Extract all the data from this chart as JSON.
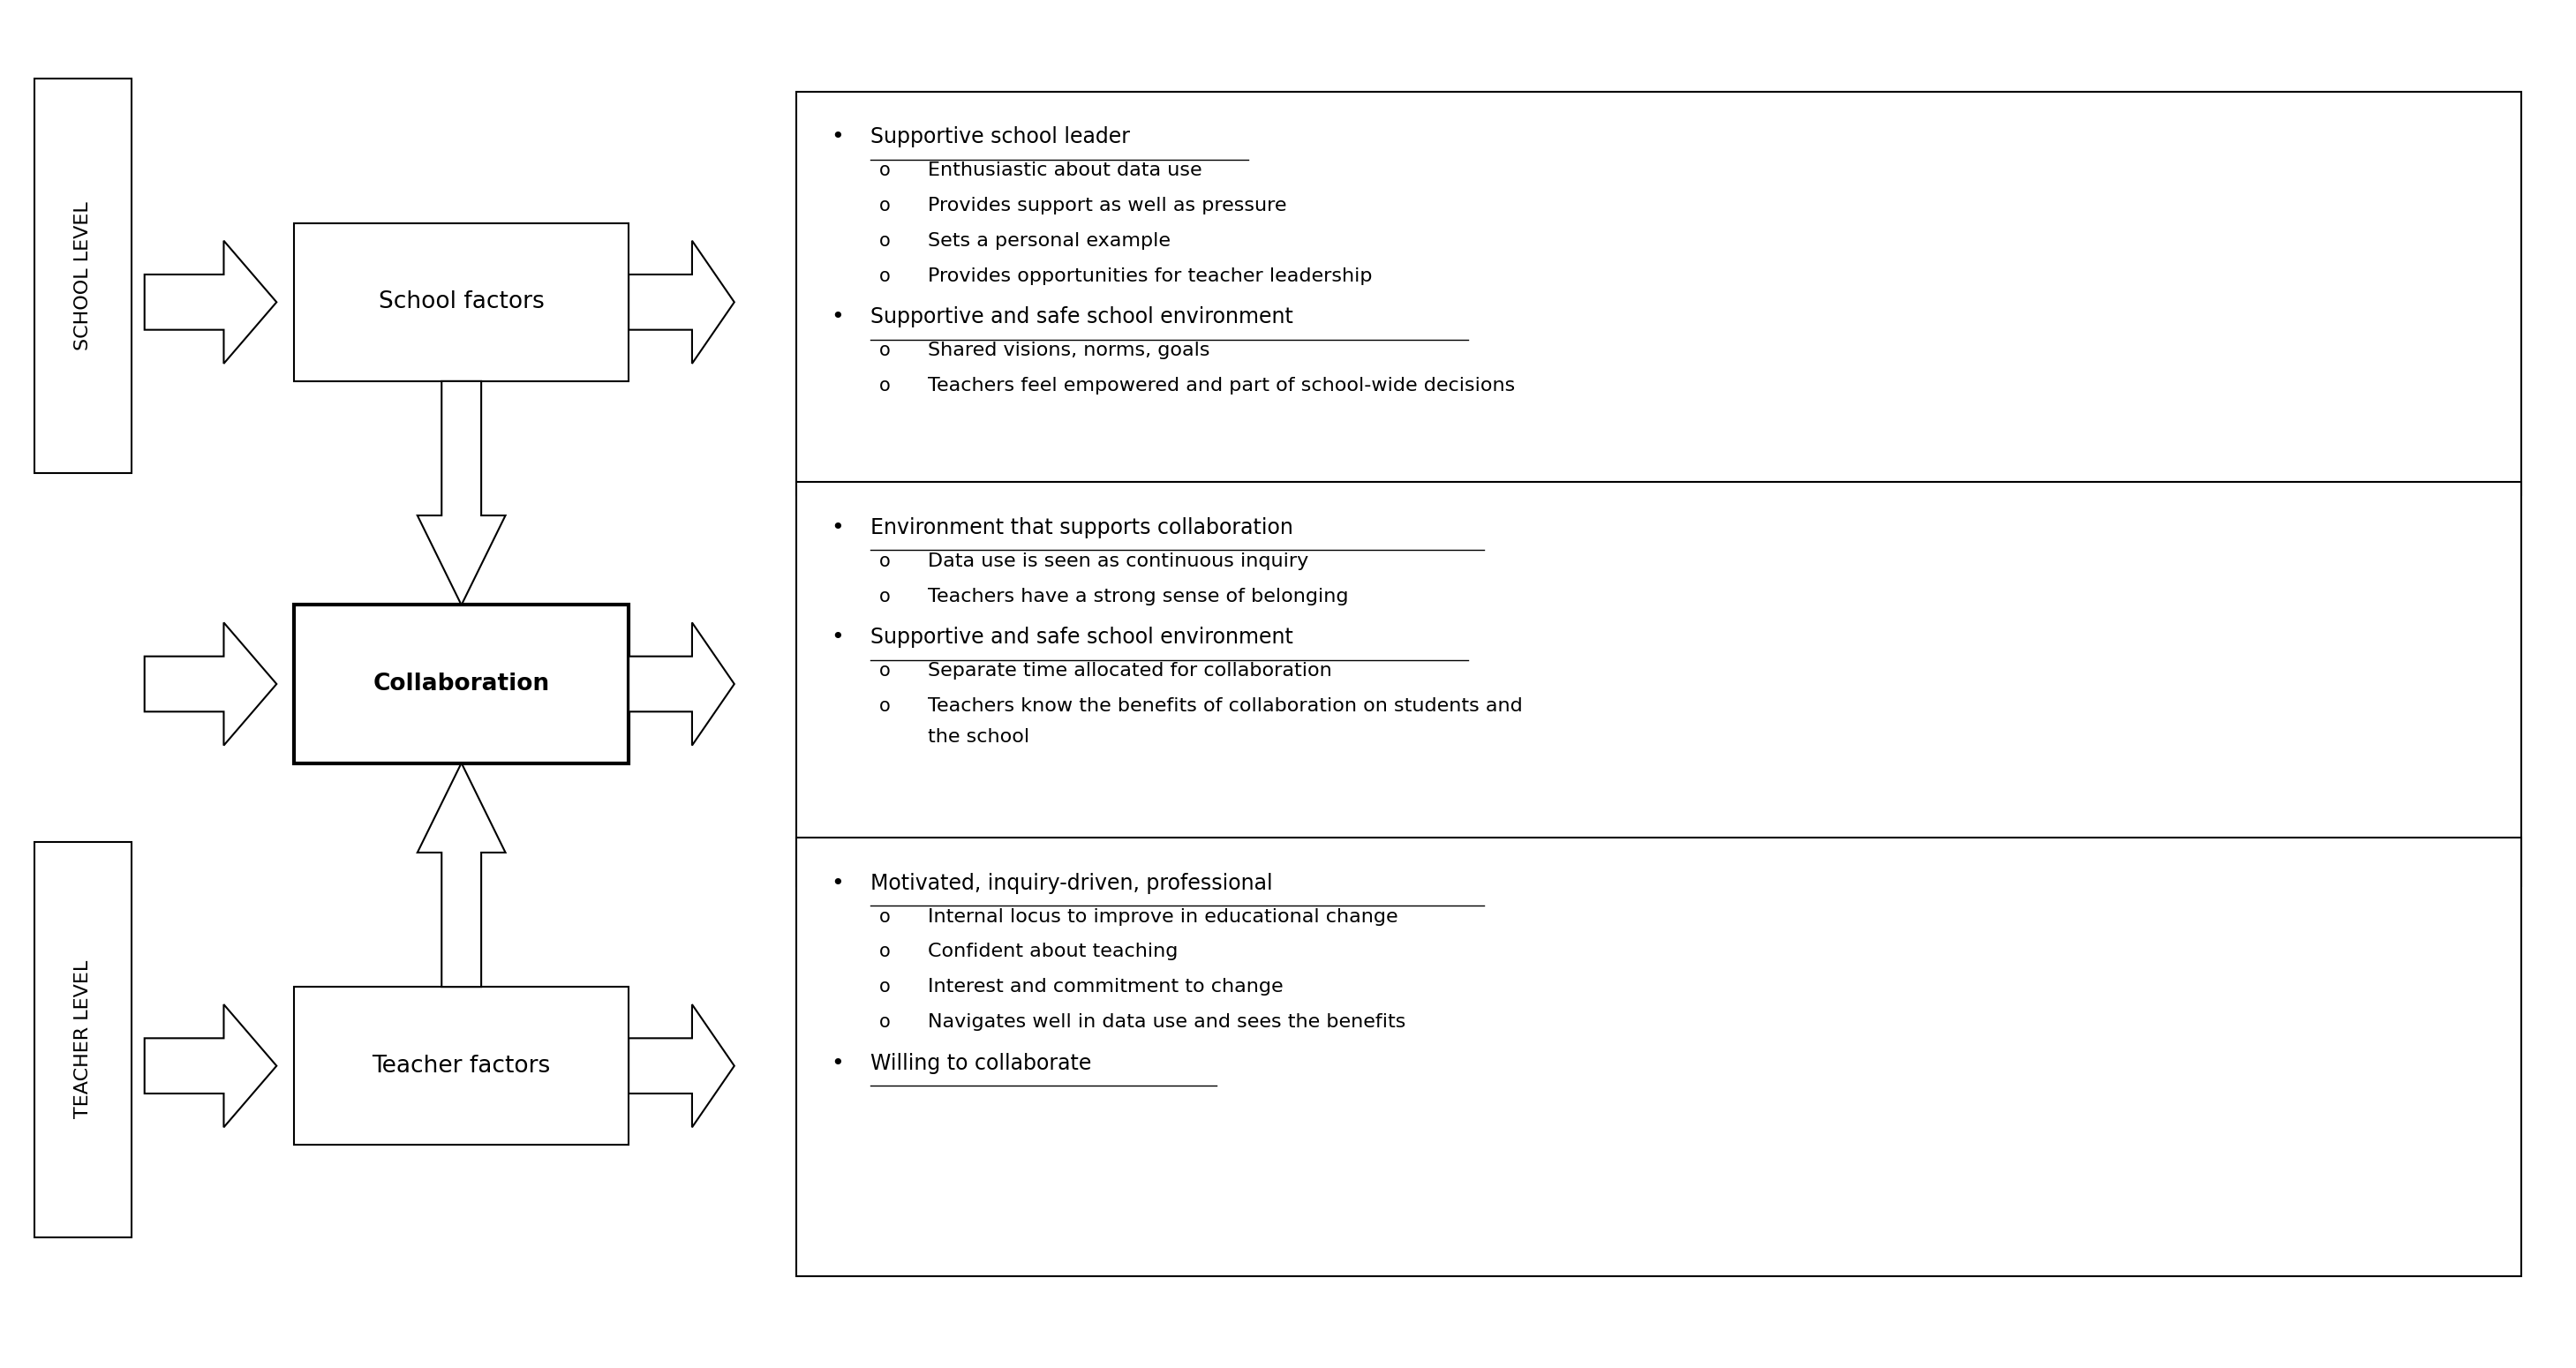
{
  "bg_color": "#ffffff",
  "text_color": "#000000",
  "school_level_label": "SCHOOL LEVEL",
  "teacher_level_label": "TEACHER LEVEL",
  "box1_label": "School factors",
  "box2_label": "Collaboration",
  "box3_label": "Teacher factors",
  "panel1_title": "Supportive school leader",
  "panel1_bullets": [
    "Enthusiastic about data use",
    "Provides support as well as pressure",
    "Sets a personal example",
    "Provides opportunities for teacher leadership"
  ],
  "panel1_title2": "Supportive and safe school environment",
  "panel1_bullets2": [
    "Shared visions, norms, goals",
    "Teachers feel empowered and part of school-wide decisions"
  ],
  "panel2_title": "Environment that supports collaboration",
  "panel2_bullets": [
    "Data use is seen as continuous inquiry",
    "Teachers have a strong sense of belonging"
  ],
  "panel2_title2": "Supportive and safe school environment",
  "panel2_bullets2": [
    "Separate time allocated for collaboration",
    "Teachers know the benefits of collaboration on students and\nthe school"
  ],
  "panel3_title": "Motivated, inquiry-driven, professional",
  "panel3_bullets": [
    "Internal locus to improve in educational change",
    "Confident about teaching",
    "Interest and commitment to change",
    "Navigates well in data use and sees the benefits"
  ],
  "panel3_title2": "Willing to collaborate",
  "panel3_bullets2": []
}
